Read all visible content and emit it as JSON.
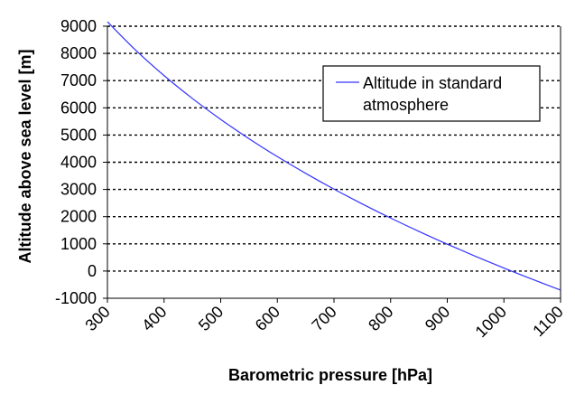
{
  "chart_data": {
    "type": "line",
    "title": "",
    "xlabel": "Barometric pressure [hPa]",
    "ylabel": "Altitude above sea level [m]",
    "xlim": [
      300,
      1100
    ],
    "ylim": [
      -1000,
      9000
    ],
    "x_ticks": [
      "300",
      "400",
      "500",
      "600",
      "700",
      "800",
      "900",
      "1000",
      "1100"
    ],
    "y_ticks": [
      "-1000",
      "0",
      "1000",
      "2000",
      "3000",
      "4000",
      "5000",
      "6000",
      "7000",
      "8000",
      "9000"
    ],
    "grid": "horizontal dashed",
    "legend_position": "top-right",
    "series": [
      {
        "name": "Altitude in standard atmosphere",
        "color": "#3333ff",
        "x": [
          300,
          350,
          400,
          450,
          500,
          550,
          600,
          650,
          700,
          750,
          800,
          850,
          900,
          950,
          1000,
          1013.25,
          1050,
          1100
        ],
        "y": [
          9164,
          8117,
          7185,
          6344,
          5574,
          4865,
          4206,
          3591,
          3012,
          2466,
          1949,
          1457,
          988,
          540,
          111,
          0,
          -301,
          -697
        ]
      }
    ]
  }
}
